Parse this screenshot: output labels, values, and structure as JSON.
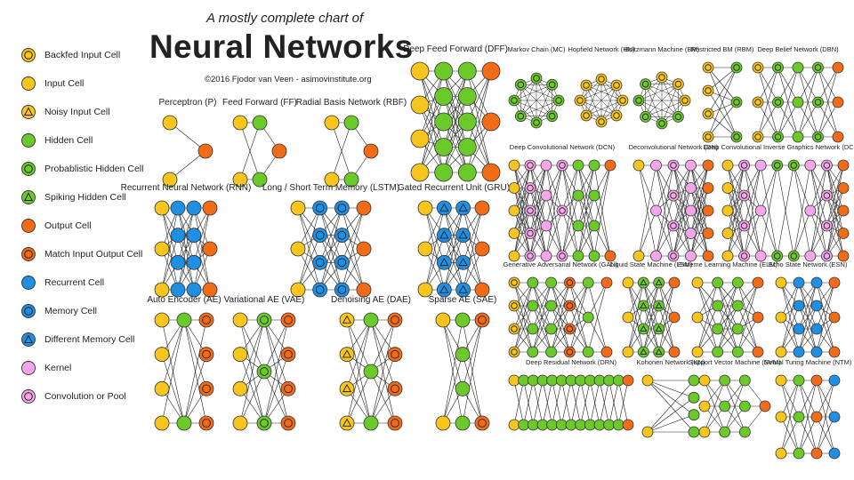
{
  "header": {
    "subtitle": "A mostly complete chart of",
    "title": "Neural Networks",
    "credit": "©2016 Fjodor van Veen - asimovinstitute.org"
  },
  "colors": {
    "input": "#f7c51b",
    "hidden": "#6cc92a",
    "output": "#f26b17",
    "recurrent": "#1e8fe3",
    "kernel": "#f5a6ea",
    "edge": "#222222"
  },
  "legend": [
    {
      "label": "Backfed Input Cell",
      "fill": "#f7c51b",
      "mark": "ring"
    },
    {
      "label": "Input Cell",
      "fill": "#f7c51b",
      "mark": "none"
    },
    {
      "label": "Noisy Input Cell",
      "fill": "#f7c51b",
      "mark": "triangle"
    },
    {
      "label": "Hidden Cell",
      "fill": "#6cc92a",
      "mark": "none"
    },
    {
      "label": "Probablistic Hidden Cell",
      "fill": "#6cc92a",
      "mark": "ring"
    },
    {
      "label": "Spiking Hidden Cell",
      "fill": "#6cc92a",
      "mark": "triangle"
    },
    {
      "label": "Output Cell",
      "fill": "#f26b17",
      "mark": "none"
    },
    {
      "label": "Match Input Output Cell",
      "fill": "#f26b17",
      "mark": "ring"
    },
    {
      "label": "Recurrent Cell",
      "fill": "#1e8fe3",
      "mark": "none"
    },
    {
      "label": "Memory Cell",
      "fill": "#1e8fe3",
      "mark": "ring"
    },
    {
      "label": "Different Memory Cell",
      "fill": "#1e8fe3",
      "mark": "triangle"
    },
    {
      "label": "Kernel",
      "fill": "#f5a6ea",
      "mark": "none"
    },
    {
      "label": "Convolution or Pool",
      "fill": "#f5a6ea",
      "mark": "ring"
    }
  ],
  "networks": [
    {
      "id": "p",
      "title": "Perceptron (P)",
      "layers": [
        [
          "in",
          "in"
        ],
        [
          "out"
        ]
      ]
    },
    {
      "id": "ff",
      "title": "Feed Forward (FF)",
      "layers": [
        [
          "in",
          "in"
        ],
        [
          "hid",
          "hid"
        ],
        [
          "out"
        ]
      ]
    },
    {
      "id": "rbf",
      "title": "Radial Basis Network (RBF)",
      "layers": [
        [
          "in",
          "in"
        ],
        [
          "hid",
          "hid"
        ],
        [
          "out"
        ]
      ]
    },
    {
      "id": "dff",
      "title": "Deep Feed Forward (DFF)",
      "layers": [
        [
          "in",
          "in",
          "in",
          "in"
        ],
        [
          "hid",
          "hid",
          "hid",
          "hid",
          "hid"
        ],
        [
          "hid",
          "hid",
          "hid",
          "hid",
          "hid"
        ],
        [
          "out",
          "out",
          "out"
        ]
      ]
    },
    {
      "id": "rnn",
      "title": "Recurrent Neural Network (RNN)",
      "layers": [
        [
          "in",
          "in",
          "in"
        ],
        [
          "rec",
          "rec",
          "rec",
          "rec"
        ],
        [
          "rec",
          "rec",
          "rec",
          "rec"
        ],
        [
          "out",
          "out",
          "out"
        ]
      ]
    },
    {
      "id": "lstm",
      "title": "Long / Short Term Memory (LSTM)",
      "layers": [
        [
          "in",
          "in",
          "in"
        ],
        [
          "mem",
          "mem",
          "mem",
          "mem"
        ],
        [
          "mem",
          "mem",
          "mem",
          "mem"
        ],
        [
          "out",
          "out",
          "out"
        ]
      ]
    },
    {
      "id": "gru",
      "title": "Gated Recurrent Unit (GRU)",
      "layers": [
        [
          "in",
          "in",
          "in"
        ],
        [
          "dmem",
          "dmem",
          "dmem",
          "dmem"
        ],
        [
          "dmem",
          "dmem",
          "dmem",
          "dmem"
        ],
        [
          "out",
          "out",
          "out"
        ]
      ]
    },
    {
      "id": "ae",
      "title": "Auto Encoder (AE)",
      "layers": [
        [
          "in",
          "in",
          "in",
          "in"
        ],
        [
          "hid",
          "hid"
        ],
        [
          "match",
          "match",
          "match",
          "match"
        ]
      ]
    },
    {
      "id": "vae",
      "title": "Variational AE (VAE)",
      "layers": [
        [
          "in",
          "in",
          "in",
          "in"
        ],
        [
          "phid",
          "phid",
          "phid"
        ],
        [
          "match",
          "match",
          "match",
          "match"
        ]
      ]
    },
    {
      "id": "dae",
      "title": "Denoising AE (DAE)",
      "layers": [
        [
          "noisy",
          "noisy",
          "noisy",
          "noisy"
        ],
        [
          "hid",
          "hid",
          "hid"
        ],
        [
          "match",
          "match",
          "match",
          "match"
        ]
      ]
    },
    {
      "id": "sae",
      "title": "Sparse AE (SAE)",
      "layers": [
        [
          "in",
          "in"
        ],
        [
          "hid",
          "hid",
          "hid",
          "hid"
        ],
        [
          "match",
          "match"
        ]
      ]
    },
    {
      "id": "mc",
      "title": "Markov Chain (MC)",
      "ring": true,
      "layers": [
        [
          "phid",
          "phid",
          "phid",
          "phid",
          "phid",
          "phid",
          "phid",
          "phid"
        ]
      ]
    },
    {
      "id": "hn",
      "title": "Hopfield Network (HN)",
      "ring": true,
      "layers": [
        [
          "backfed",
          "backfed",
          "backfed",
          "backfed",
          "backfed",
          "backfed",
          "backfed",
          "backfed"
        ]
      ]
    },
    {
      "id": "bm",
      "title": "Boltzmann Machine (BM)",
      "ring": true,
      "layers": [
        [
          "backfed",
          "backfed",
          "backfed",
          "phid",
          "phid",
          "phid",
          "phid",
          "phid"
        ]
      ]
    },
    {
      "id": "rbm",
      "title": "Restricted BM (RBM)",
      "layers": [
        [
          "backfed",
          "backfed",
          "backfed",
          "backfed"
        ],
        [
          "phid",
          "phid",
          "phid"
        ]
      ]
    },
    {
      "id": "dbn",
      "title": "Deep Belief Network (DBN)",
      "layers": [
        [
          "backfed",
          "backfed",
          "backfed"
        ],
        [
          "phid",
          "phid",
          "phid"
        ],
        [
          "hid",
          "hid",
          "hid"
        ],
        [
          "phid",
          "phid",
          "phid"
        ],
        [
          "out",
          "out",
          "out"
        ]
      ]
    },
    {
      "id": "dcn",
      "title": "Deep Convolutional Network (DCN)",
      "layers": [
        [
          "in",
          "in",
          "in",
          "in",
          "in"
        ],
        [
          "conv",
          "conv",
          "conv",
          "conv",
          "conv"
        ],
        [
          "kernel",
          "kernel",
          "kernel",
          "kernel"
        ],
        [
          "conv",
          "conv",
          "conv"
        ],
        [
          "hid",
          "hid",
          "hid",
          "hid"
        ],
        [
          "hid",
          "hid",
          "hid",
          "hid"
        ],
        [
          "out",
          "out"
        ]
      ]
    },
    {
      "id": "dn",
      "title": "Deconvolutional Network (DN)",
      "layers": [
        [
          "in",
          "in"
        ],
        [
          "kernel",
          "kernel",
          "kernel"
        ],
        [
          "conv",
          "conv",
          "conv",
          "conv"
        ],
        [
          "kernel",
          "kernel",
          "kernel",
          "kernel",
          "kernel"
        ],
        [
          "out",
          "out",
          "out",
          "out",
          "out"
        ]
      ]
    },
    {
      "id": "dcign",
      "title": "Deep Convolutional Inverse Graphics Network (DCIGN)",
      "layers": [
        [
          "in",
          "in",
          "in",
          "in",
          "in"
        ],
        [
          "conv",
          "conv",
          "conv",
          "conv"
        ],
        [
          "kernel",
          "kernel",
          "kernel"
        ],
        [
          "phid",
          "phid"
        ],
        [
          "phid",
          "phid"
        ],
        [
          "kernel",
          "kernel",
          "kernel"
        ],
        [
          "conv",
          "conv",
          "conv",
          "conv"
        ],
        [
          "out",
          "out",
          "out",
          "out",
          "out"
        ]
      ]
    },
    {
      "id": "gan",
      "title": "Generative Adversarial Network (GAN)",
      "layers": [
        [
          "backfed",
          "backfed",
          "backfed",
          "backfed"
        ],
        [
          "hid",
          "hid",
          "hid",
          "hid"
        ],
        [
          "hid",
          "hid",
          "hid",
          "hid"
        ],
        [
          "match",
          "match",
          "match",
          "match"
        ],
        [
          "hid",
          "hid",
          "hid"
        ],
        [
          "out",
          "out"
        ]
      ]
    },
    {
      "id": "lsm",
      "title": "Liquid State Machine (LSM)",
      "layers": [
        [
          "in",
          "in",
          "in"
        ],
        [
          "spike",
          "spike",
          "spike",
          "spike"
        ],
        [
          "spike",
          "spike",
          "spike",
          "spike"
        ],
        [
          "out",
          "out",
          "out"
        ]
      ]
    },
    {
      "id": "elm",
      "title": "Extreme Learning Machine (ELM)",
      "layers": [
        [
          "in",
          "in",
          "in"
        ],
        [
          "hid",
          "hid",
          "hid",
          "hid"
        ],
        [
          "hid",
          "hid",
          "hid",
          "hid"
        ],
        [
          "out",
          "out",
          "out"
        ]
      ]
    },
    {
      "id": "esn",
      "title": "Echo State Network (ESN)",
      "layers": [
        [
          "in",
          "in",
          "in"
        ],
        [
          "rec",
          "rec",
          "rec",
          "rec"
        ],
        [
          "rec",
          "rec",
          "rec",
          "rec"
        ],
        [
          "out",
          "out",
          "out"
        ]
      ]
    },
    {
      "id": "drn",
      "title": "Deep Residual Network (DRN)",
      "layers": [
        [
          "in",
          "in"
        ],
        [
          "hid",
          "hid"
        ],
        [
          "hid",
          "hid"
        ],
        [
          "hid",
          "hid"
        ],
        [
          "hid",
          "hid"
        ],
        [
          "hid",
          "hid"
        ],
        [
          "hid",
          "hid"
        ],
        [
          "hid",
          "hid"
        ],
        [
          "hid",
          "hid"
        ],
        [
          "hid",
          "hid"
        ],
        [
          "hid",
          "hid"
        ],
        [
          "hid",
          "hid"
        ],
        [
          "out",
          "out"
        ]
      ]
    },
    {
      "id": "kn",
      "title": "Kohonen Network (KN)",
      "layers": [
        [
          "in",
          "in"
        ],
        [
          "hid",
          "hid",
          "hid",
          "hid"
        ]
      ]
    },
    {
      "id": "svm",
      "title": "Support Vector Machine (SVM)",
      "layers": [
        [
          "in",
          "in",
          "in"
        ],
        [
          "hid",
          "hid",
          "hid"
        ],
        [
          "hid",
          "hid",
          "hid"
        ],
        [
          "out"
        ]
      ]
    },
    {
      "id": "ntm",
      "title": "Neural Turing Machine (NTM)",
      "layers": [
        [
          "in",
          "in",
          "in"
        ],
        [
          "hid",
          "hid",
          "hid"
        ],
        [
          "out",
          "out",
          "out"
        ],
        [
          "rec",
          "rec",
          "rec"
        ]
      ]
    }
  ]
}
